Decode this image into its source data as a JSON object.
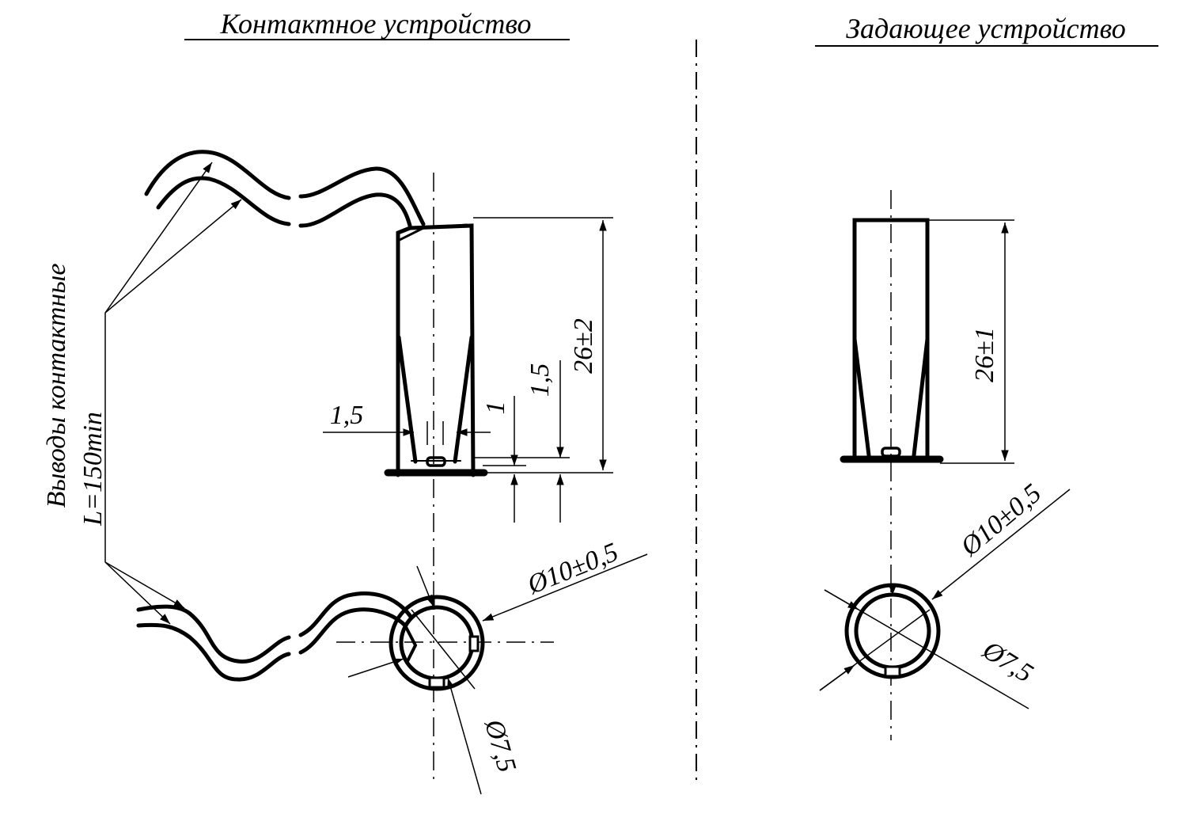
{
  "left_title": "Контактное устройство",
  "right_title": "Задающее устройство",
  "leads_label_line1": "Выводы контактные",
  "leads_label_line2": "L=150min",
  "left": {
    "height_dim": "26±2",
    "dim_1_5_horizontal": "1,5",
    "dim_1": "1",
    "dim_1_5_vertical": "1,5",
    "outer_diameter": "Ø10±0,5",
    "inner_diameter": "Ø7,5"
  },
  "right": {
    "height_dim": "26±1",
    "outer_diameter": "Ø10±0,5",
    "inner_diameter": "Ø7,5"
  }
}
